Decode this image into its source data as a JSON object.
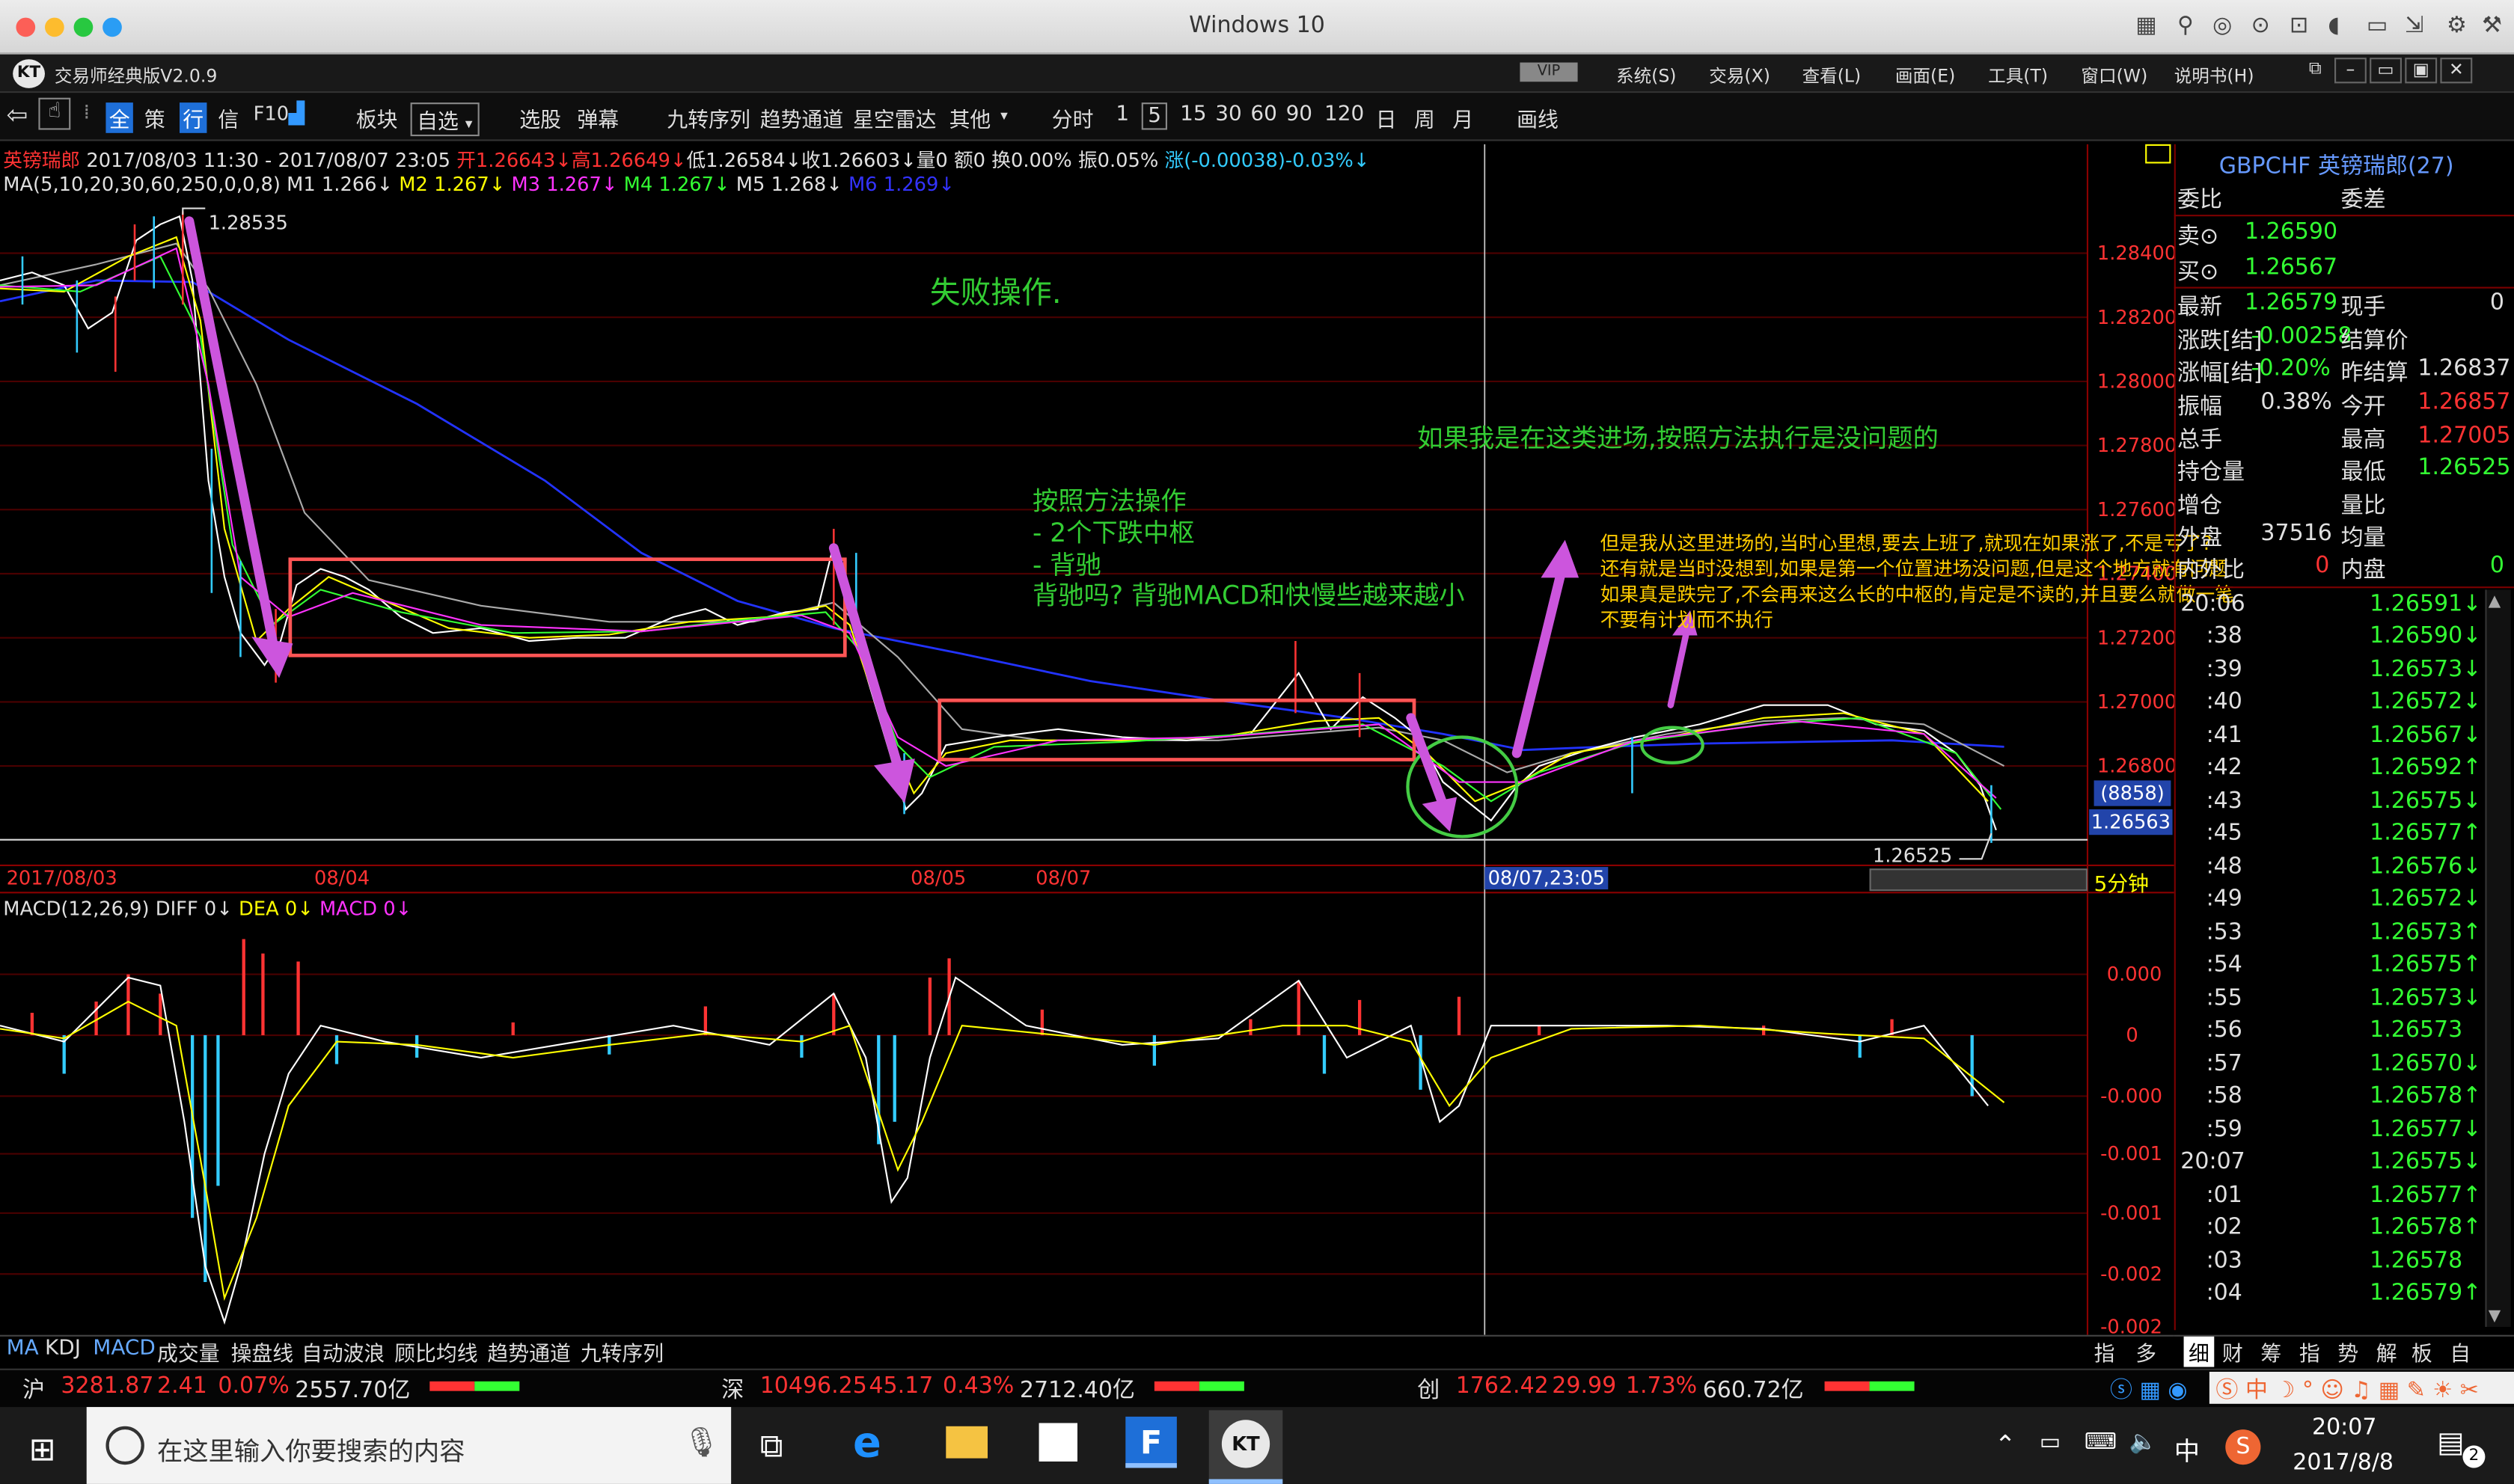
{
  "window": {
    "title": "Windows 10"
  },
  "app": {
    "name": "交易师经典版V2.0.9",
    "vip": "VIP",
    "menus": [
      "系统(S)",
      "交易(X)",
      "查看(L)",
      "画面(E)",
      "工具(T)",
      "窗口(W)",
      "说明书(H)"
    ]
  },
  "toolbar": {
    "items": [
      "全",
      "策",
      "行",
      "信",
      "F10",
      "板块",
      "自选",
      "选股",
      "弹幕",
      "九转序列",
      "趋势通道",
      "星空雷达",
      "其他",
      "分时",
      "1",
      "5",
      "15",
      "30",
      "60",
      "90",
      "120",
      "日",
      "周",
      "月",
      "画线"
    ]
  },
  "chart": {
    "symbol": "英镑瑞郎",
    "range": "2017/08/03 11:30 - 2017/08/07 23:05",
    "open": "开1.26643↓",
    "high": "高1.26649↓",
    "low": "低1.26584↓",
    "close": "收1.26603↓",
    "vol": "量0",
    "amount": "额0",
    "turnover": "换0.00%",
    "amplitude": "振0.05%",
    "change": "涨(-0.00038)-0.03%↓",
    "ma_label": "MA(5,10,20,30,60,250,0,0,8)",
    "ma": [
      {
        "name": "M1",
        "value": "1.266↓",
        "color": "#ffffff"
      },
      {
        "name": "M2",
        "value": "1.267↓",
        "color": "#ffff00"
      },
      {
        "name": "M3",
        "value": "1.267↓",
        "color": "#ff33ff"
      },
      {
        "name": "M4",
        "value": "1.267↓",
        "color": "#33ff33"
      },
      {
        "name": "M5",
        "value": "1.268↓",
        "color": "#c0c0c0"
      },
      {
        "name": "M6",
        "value": "1.269↓",
        "color": "#3333ff"
      }
    ],
    "high_mark": "1.28535",
    "low_mark": "1.26525",
    "cursor_price_vol": "(8858)",
    "cursor_price": "1.26563",
    "cursor_time": "08/07,23:05",
    "period": "5分钟",
    "y_labels": [
      "1.28400",
      "1.28200",
      "1.28000",
      "1.27800",
      "1.27600",
      "1.27400",
      "1.27200",
      "1.27000",
      "1.26800"
    ],
    "x_labels": [
      "2017/08/03",
      "08/04",
      "08/05",
      "08/07"
    ],
    "annotations": {
      "fail": "失败操作.",
      "method": [
        "按照方法操作",
        "- 2个下跌中枢",
        "- 背驰",
        "背驰吗? 背驰MACD和快慢些越来越小"
      ],
      "ok": "如果我是在这类进场,按照方法执行是没问题的",
      "note": [
        "但是我从这里进场的,当时心里想,要去上班了,就现在如果涨了,不是亏了?",
        "还有就是当时没想到,如果是第一个位置进场没问题,但是这个地方就有问题",
        "如果真是跌完了,不会再来这么长的中枢的,肯定是不读的,并且要么就做一笔",
        "不要有计划而不执行"
      ]
    }
  },
  "macd": {
    "label": "MACD(12,26,9)",
    "diff": "DIFF 0↓",
    "dea": "DEA 0↓",
    "macd": "MACD 0↓",
    "y_labels": [
      "0.000",
      "0",
      "-0.000",
      "-0.001",
      "-0.001",
      "-0.002",
      "-0.002"
    ]
  },
  "bottom_tabs": [
    "MA",
    "KDJ",
    "MACD",
    "成交量",
    "操盘线",
    "自动波浪",
    "顾比均线",
    "趋势通道",
    "九转序列"
  ],
  "right_tabs_bottom": [
    "指",
    "多"
  ],
  "right_panel": {
    "symbol": "GBPCHF",
    "name": "英镑瑞郎(27)",
    "wb": "委比",
    "wc": "委差",
    "sell": {
      "label": "卖⊙",
      "value": "1.26590"
    },
    "buy": {
      "label": "买⊙",
      "value": "1.26567"
    },
    "rows": [
      {
        "l1": "最新",
        "v1": "1.26579",
        "l2": "现手",
        "v2": "0"
      },
      {
        "l1": "涨跌[结]",
        "v1": "-0.00258",
        "l2": "结算价",
        "v2": ""
      },
      {
        "l1": "涨幅[结]",
        "v1": "-0.20%",
        "l2": "昨结算",
        "v2": "1.26837"
      },
      {
        "l1": "振幅",
        "v1": "0.38%",
        "l2": "今开",
        "v2": "1.26857"
      },
      {
        "l1": "总手",
        "v1": "",
        "l2": "最高",
        "v2": "1.27005"
      },
      {
        "l1": "持仓量",
        "v1": "",
        "l2": "最低",
        "v2": "1.26525"
      },
      {
        "l1": "增仓",
        "v1": "",
        "l2": "量比",
        "v2": ""
      },
      {
        "l1": "外盘",
        "v1": "37516",
        "l2": "均量",
        "v2": ""
      },
      {
        "l1": "内外比",
        "v1": "0",
        "l2": "内盘",
        "v2": "0"
      }
    ],
    "ticks": [
      {
        "t": "20:06",
        "p": "1.26591↓"
      },
      {
        "t": ":38",
        "p": "1.26590↓"
      },
      {
        "t": ":39",
        "p": "1.26573↓"
      },
      {
        "t": ":40",
        "p": "1.26572↓"
      },
      {
        "t": ":41",
        "p": "1.26567↓"
      },
      {
        "t": ":42",
        "p": "1.26592↑"
      },
      {
        "t": ":43",
        "p": "1.26575↓"
      },
      {
        "t": ":45",
        "p": "1.26577↑"
      },
      {
        "t": ":48",
        "p": "1.26576↓"
      },
      {
        "t": ":49",
        "p": "1.26572↓"
      },
      {
        "t": ":53",
        "p": "1.26573↑"
      },
      {
        "t": ":54",
        "p": "1.26575↑"
      },
      {
        "t": ":55",
        "p": "1.26573↓"
      },
      {
        "t": ":56",
        "p": "1.26573"
      },
      {
        "t": ":57",
        "p": "1.26570↓"
      },
      {
        "t": ":58",
        "p": "1.26578↑"
      },
      {
        "t": ":59",
        "p": "1.26577↓"
      },
      {
        "t": "20:07",
        "p": "1.26575↓"
      },
      {
        "t": ":01",
        "p": "1.26577↑"
      },
      {
        "t": ":02",
        "p": "1.26578↑"
      },
      {
        "t": ":03",
        "p": "1.26578"
      },
      {
        "t": ":04",
        "p": "1.26579↑"
      }
    ],
    "tabs": [
      "细",
      "财",
      "筹",
      "指",
      "势",
      "解",
      "板",
      "自"
    ]
  },
  "indices": [
    {
      "name": "沪",
      "value": "3281.87",
      "chg": "2.41",
      "pct": "0.07%",
      "amt": "2557.70亿"
    },
    {
      "name": "深",
      "value": "10496.25",
      "chg": "45.17",
      "pct": "0.43%",
      "amt": "2712.40亿"
    },
    {
      "name": "创",
      "value": "1762.42",
      "chg": "29.99",
      "pct": "1.73%",
      "amt": "660.72亿"
    }
  ],
  "taskbar": {
    "search_placeholder": "在这里输入你要搜索的内容",
    "time": "20:07",
    "date": "2017/8/8",
    "ime": "中",
    "notif": "2"
  }
}
